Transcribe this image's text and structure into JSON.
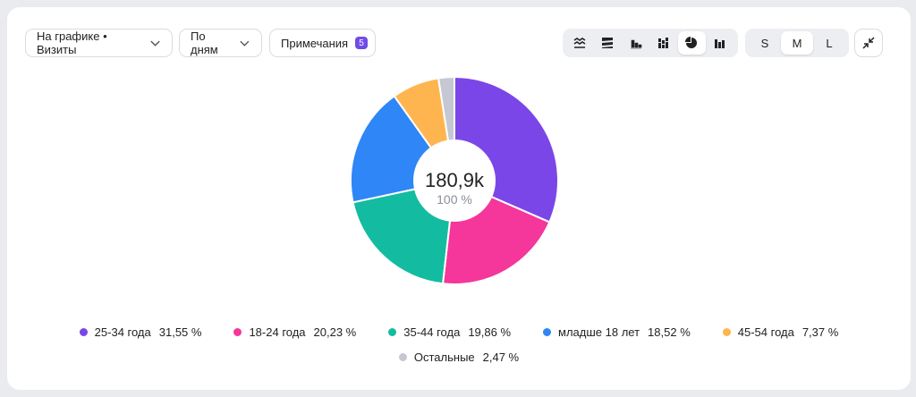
{
  "toolbar": {
    "metric_dropdown": "На графике • Визиты",
    "period_dropdown": "По дням",
    "notes_label": "Примечания",
    "notes_count": "5",
    "size_options": [
      "S",
      "M",
      "L"
    ],
    "active_size": "M",
    "chart_types": [
      "area-chart-icon",
      "stacked-area-icon",
      "bar-chart-icon",
      "stacked-bar-icon",
      "pie-chart-icon",
      "column-chart-icon"
    ],
    "active_chart_type": "pie-chart-icon"
  },
  "center": {
    "value": "180,9k",
    "percent": "100 %"
  },
  "chart_data": {
    "type": "pie",
    "donut": true,
    "series": [
      {
        "name": "25-34 года",
        "value": 31.55,
        "label": "31,55 %",
        "color": "#7b46e8"
      },
      {
        "name": "18-24 года",
        "value": 20.23,
        "label": "20,23 %",
        "color": "#f5369a"
      },
      {
        "name": "35-44 года",
        "value": 19.86,
        "label": "19,86 %",
        "color": "#13bca0"
      },
      {
        "name": "младше 18 лет",
        "value": 18.52,
        "label": "18,52 %",
        "color": "#2f86f6"
      },
      {
        "name": "45-54 года",
        "value": 7.37,
        "label": "7,37 %",
        "color": "#ffb54f"
      },
      {
        "name": "Остальные",
        "value": 2.47,
        "label": "2,47 %",
        "color": "#c5c8d3"
      }
    ],
    "legend_placement": "bottom"
  }
}
